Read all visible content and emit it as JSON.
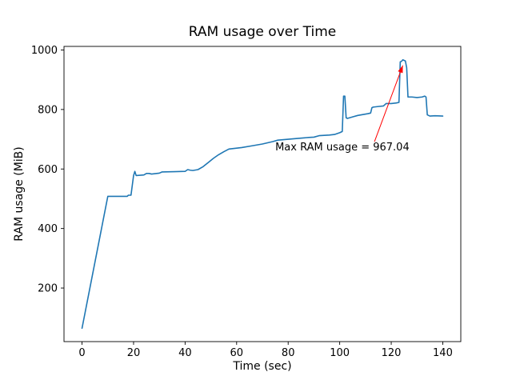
{
  "figure": {
    "background": "#ffffff"
  },
  "chart_data": {
    "type": "line",
    "title": "RAM usage over Time",
    "xlabel": "Time (sec)",
    "ylabel": "RAM usage (MiB)",
    "xlim": [
      -7,
      147
    ],
    "ylim": [
      20,
      1012
    ],
    "xticks": [
      0,
      20,
      40,
      60,
      80,
      100,
      120,
      140
    ],
    "yticks": [
      200,
      400,
      600,
      800,
      1000
    ],
    "grid": false,
    "legend": "none",
    "line_color": "#1f77b4",
    "max_value": 967.04,
    "series": [
      {
        "name": "RAM usage",
        "points": [
          [
            0,
            65
          ],
          [
            10,
            508
          ],
          [
            17.5,
            508
          ],
          [
            18,
            512
          ],
          [
            19,
            512
          ],
          [
            20,
            578
          ],
          [
            20.5,
            592
          ],
          [
            21,
            578
          ],
          [
            24,
            580
          ],
          [
            25,
            585
          ],
          [
            26,
            585
          ],
          [
            27,
            583
          ],
          [
            30,
            586
          ],
          [
            31,
            590
          ],
          [
            36,
            591
          ],
          [
            40,
            592
          ],
          [
            41,
            598
          ],
          [
            42,
            596
          ],
          [
            43,
            595
          ],
          [
            45,
            598
          ],
          [
            47,
            608
          ],
          [
            49,
            622
          ],
          [
            51,
            636
          ],
          [
            53,
            648
          ],
          [
            55,
            658
          ],
          [
            57,
            667
          ],
          [
            58,
            668
          ],
          [
            62,
            672
          ],
          [
            66,
            678
          ],
          [
            70,
            684
          ],
          [
            74,
            692
          ],
          [
            76,
            697
          ],
          [
            80,
            700
          ],
          [
            84,
            703
          ],
          [
            88,
            706
          ],
          [
            90,
            707
          ],
          [
            92,
            712
          ],
          [
            94,
            713
          ],
          [
            96,
            714
          ],
          [
            98,
            716
          ],
          [
            100,
            722
          ],
          [
            101,
            726
          ],
          [
            101.5,
            845
          ],
          [
            102,
            845
          ],
          [
            102.5,
            772
          ],
          [
            103,
            770
          ],
          [
            105,
            775
          ],
          [
            107,
            780
          ],
          [
            109,
            783
          ],
          [
            111,
            786
          ],
          [
            112,
            788
          ],
          [
            112.5,
            806
          ],
          [
            113,
            808
          ],
          [
            115,
            810
          ],
          [
            117,
            812
          ],
          [
            118,
            820
          ],
          [
            120,
            820
          ],
          [
            122,
            822
          ],
          [
            123,
            824
          ],
          [
            123.5,
            960
          ],
          [
            124,
            962
          ],
          [
            124.5,
            967
          ],
          [
            125,
            965
          ],
          [
            125.5,
            963
          ],
          [
            126,
            940
          ],
          [
            126.5,
            842
          ],
          [
            128,
            842
          ],
          [
            130,
            840
          ],
          [
            132,
            842
          ],
          [
            133,
            845
          ],
          [
            133.5,
            842
          ],
          [
            134,
            782
          ],
          [
            135,
            778
          ],
          [
            137,
            779
          ],
          [
            140,
            778
          ]
        ]
      }
    ],
    "annotation": {
      "text": "Max RAM usage = 967.04",
      "color": "#ff0000",
      "xy": [
        124.5,
        948
      ],
      "arrow_tail": [
        113.5,
        692
      ],
      "xytext": [
        75,
        662
      ]
    }
  }
}
